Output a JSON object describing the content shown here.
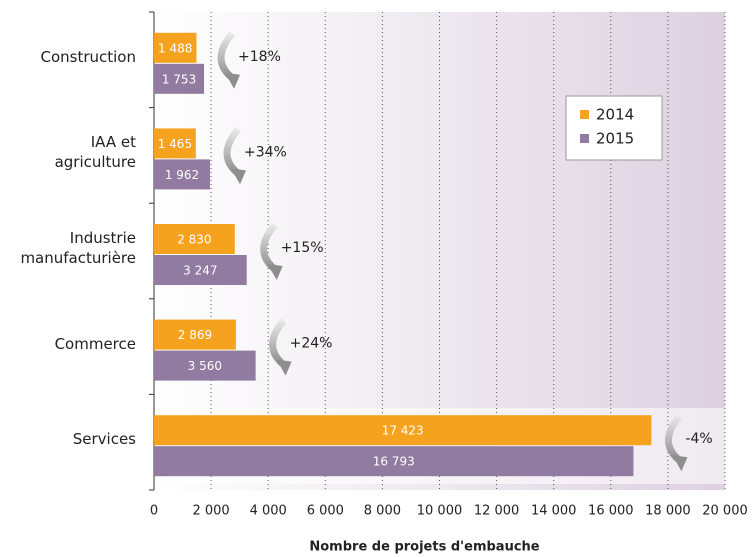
{
  "chart_data": {
    "type": "hbar",
    "categories": [
      "Construction",
      "IAA et\nagriculture",
      "Industrie\nmanufacturière",
      "Commerce",
      "Services"
    ],
    "series": [
      {
        "name": "2014",
        "color": "#f5a31e",
        "values": [
          1488,
          1465,
          2830,
          2869,
          17423
        ],
        "value_labels": [
          "1 488",
          "1 465",
          "2 830",
          "2 869",
          "17 423"
        ]
      },
      {
        "name": "2015",
        "color": "#917ba0",
        "values": [
          1753,
          1962,
          3247,
          3560,
          16793
        ],
        "value_labels": [
          "1 753",
          "1 962",
          "3 247",
          "3 560",
          "16 793"
        ]
      }
    ],
    "annotations": [
      "+18%",
      "+34%",
      "+15%",
      "+24%",
      "-4%"
    ],
    "xlabel": "Nombre de projets d'embauche",
    "xlim": [
      0,
      20000
    ],
    "xticks": [
      0,
      {
        "value": 2000,
        "label": "2 000"
      },
      {
        "value": 4000,
        "label": "4 000"
      },
      {
        "value": 6000,
        "label": "6 000"
      },
      {
        "value": 8000,
        "label": "8 000"
      },
      {
        "value": 10000,
        "label": "10 000"
      },
      {
        "value": 12000,
        "label": "12 000"
      },
      {
        "value": 14000,
        "label": "14 000"
      },
      {
        "value": 16000,
        "label": "16 000"
      },
      {
        "value": 18000,
        "label": "18 000"
      },
      {
        "value": 20000,
        "label": "20 000"
      }
    ],
    "grid": true,
    "legend": "upper right"
  }
}
